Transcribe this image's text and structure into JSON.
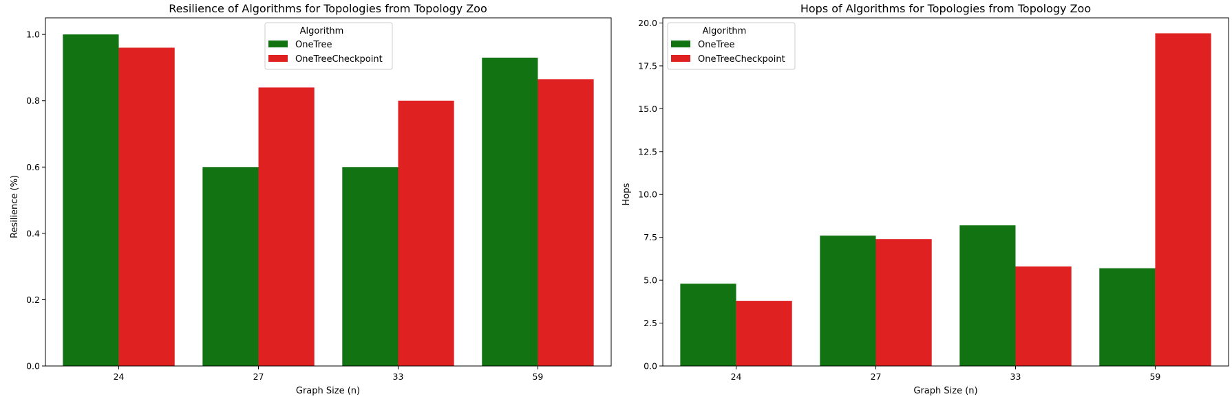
{
  "chart_data": [
    {
      "type": "bar",
      "title": "Resilience of Algorithms for Topologies from Topology Zoo",
      "xlabel": "Graph Size (n)",
      "ylabel": "Resilience (%)",
      "categories": [
        "24",
        "27",
        "33",
        "59"
      ],
      "ylim": [
        0,
        1.05
      ],
      "yticks": [
        0.0,
        0.2,
        0.4,
        0.6,
        0.8,
        1.0
      ],
      "ytick_labels": [
        "0.0",
        "0.2",
        "0.4",
        "0.6",
        "0.8",
        "1.0"
      ],
      "grid": false,
      "legend": {
        "title": "Algorithm",
        "placement": "top-center"
      },
      "series": [
        {
          "name": "OneTree",
          "color": "#117311",
          "values": [
            1.0,
            0.6,
            0.6,
            0.93
          ]
        },
        {
          "name": "OneTreeCheckpoint",
          "color": "#df2121",
          "values": [
            0.96,
            0.84,
            0.8,
            0.865
          ]
        }
      ]
    },
    {
      "type": "bar",
      "title": "Hops of Algorithms for Topologies from Topology Zoo",
      "xlabel": "Graph Size (n)",
      "ylabel": "Hops",
      "categories": [
        "24",
        "27",
        "33",
        "59"
      ],
      "ylim": [
        0,
        20.3
      ],
      "yticks": [
        0.0,
        2.5,
        5.0,
        7.5,
        10.0,
        12.5,
        15.0,
        17.5,
        20.0
      ],
      "ytick_labels": [
        "0.0",
        "2.5",
        "5.0",
        "7.5",
        "10.0",
        "12.5",
        "15.0",
        "17.5",
        "20.0"
      ],
      "grid": false,
      "legend": {
        "title": "Algorithm",
        "placement": "top-left"
      },
      "series": [
        {
          "name": "OneTree",
          "color": "#117311",
          "values": [
            4.8,
            7.6,
            8.2,
            5.7
          ]
        },
        {
          "name": "OneTreeCheckpoint",
          "color": "#df2121",
          "values": [
            3.8,
            7.4,
            5.8,
            19.4
          ]
        }
      ]
    }
  ]
}
